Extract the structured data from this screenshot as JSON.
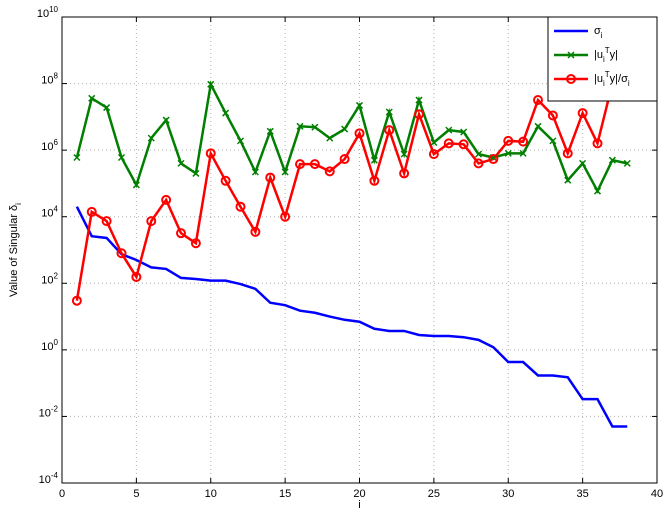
{
  "chart_data": {
    "type": "line",
    "xlabel": "i",
    "ylabel": "Value of Singular δ_i",
    "x": [
      1,
      2,
      3,
      4,
      5,
      6,
      7,
      8,
      9,
      10,
      11,
      12,
      13,
      14,
      15,
      16,
      17,
      18,
      19,
      20,
      21,
      22,
      23,
      24,
      25,
      26,
      27,
      28,
      29,
      30,
      31,
      32,
      33,
      34,
      35,
      36,
      37,
      38
    ],
    "xlim": [
      0,
      40
    ],
    "xticks": [
      0,
      5,
      10,
      15,
      20,
      25,
      30,
      35,
      40
    ],
    "ylim": [
      0.0001,
      10000000000
    ],
    "yticks": [
      {
        "value": 0.0001,
        "label": "10^{-4}"
      },
      {
        "value": 0.01,
        "label": "10^{-2}"
      },
      {
        "value": 1,
        "label": "10^0"
      },
      {
        "value": 100,
        "label": "10^2"
      },
      {
        "value": 10000,
        "label": "10^4"
      },
      {
        "value": 1000000,
        "label": "10^6"
      },
      {
        "value": 100000000,
        "label": "10^8"
      },
      {
        "value": 10000000000,
        "label": "10^{10}"
      }
    ],
    "log_y": true,
    "grid": true,
    "legend": "upper right",
    "series": [
      {
        "name": "σ_i",
        "color": "#0000ff",
        "marker": "none",
        "values": [
          20000,
          2600,
          2300,
          750,
          500,
          300,
          270,
          145,
          135,
          120,
          120,
          95,
          68,
          26,
          22,
          15,
          13,
          10,
          8,
          7,
          4.3,
          3.7,
          3.7,
          2.8,
          2.6,
          2.6,
          2.4,
          2.0,
          1.2,
          0.43,
          0.43,
          0.17,
          0.17,
          0.15,
          0.033,
          0.033,
          0.005,
          0.005
        ]
      },
      {
        "name": "|u_i^Ty|",
        "color": "#007f00",
        "marker": "x",
        "values": [
          600000,
          36000000,
          19000000,
          600000,
          90000,
          2300000,
          8000000,
          400000,
          200000,
          95000000,
          13000000,
          1900000,
          220000,
          3700000,
          220000,
          5200000,
          4900000,
          2300000,
          4300000,
          22000000,
          500000,
          14000000,
          760000,
          32000000,
          1700000,
          4000000,
          3500000,
          760000,
          600000,
          800000,
          800000,
          5200000,
          1900000,
          125000,
          400000,
          59000,
          500000,
          400000
        ]
      },
      {
        "name": "|u_i^Ty|/σ_i",
        "color": "#ff0000",
        "marker": "o",
        "values": [
          30,
          14000,
          7400,
          800,
          155,
          7400,
          32000,
          3200,
          1600,
          800000,
          120000,
          20000,
          3500,
          150000,
          10000,
          380000,
          380000,
          230000,
          540000,
          3200000,
          120000,
          4000000,
          200000,
          12000000,
          760000,
          1600000,
          1500000,
          400000,
          540000,
          1900000,
          1800000,
          32000000,
          11000000,
          800000,
          13000000,
          1600000,
          100000000,
          80000000
        ]
      }
    ]
  }
}
